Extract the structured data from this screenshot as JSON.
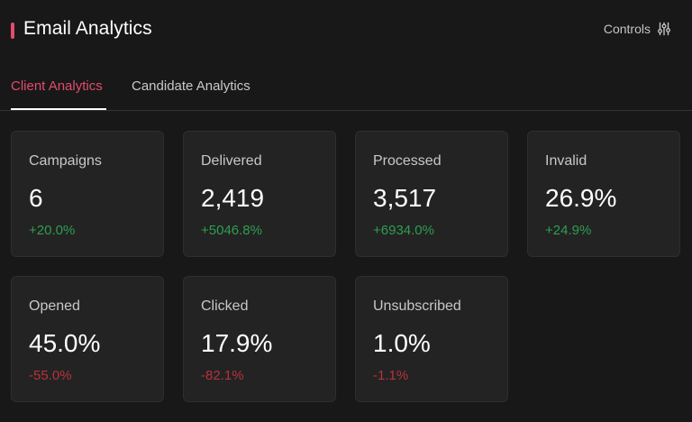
{
  "header": {
    "title": "Email Analytics",
    "controls_label": "Controls",
    "controls_icon": "sliders-icon",
    "accent_color": "#e34b6f"
  },
  "tabs": [
    {
      "label": "Client Analytics",
      "active": true
    },
    {
      "label": "Candidate Analytics",
      "active": false
    }
  ],
  "metrics": [
    {
      "label": "Campaigns",
      "value": "6",
      "change": "+20.0%",
      "trend": "up"
    },
    {
      "label": "Delivered",
      "value": "2,419",
      "change": "+5046.8%",
      "trend": "up"
    },
    {
      "label": "Processed",
      "value": "3,517",
      "change": "+6934.0%",
      "trend": "up"
    },
    {
      "label": "Invalid",
      "value": "26.9%",
      "change": "+24.9%",
      "trend": "up"
    },
    {
      "label": "Opened",
      "value": "45.0%",
      "change": "-55.0%",
      "trend": "down"
    },
    {
      "label": "Clicked",
      "value": "17.9%",
      "change": "-82.1%",
      "trend": "down"
    },
    {
      "label": "Unsubscribed",
      "value": "1.0%",
      "change": "-1.1%",
      "trend": "down"
    }
  ],
  "colors": {
    "positive": "#2e9e4f",
    "negative": "#b8323b",
    "active_tab": "#e34b6f"
  }
}
